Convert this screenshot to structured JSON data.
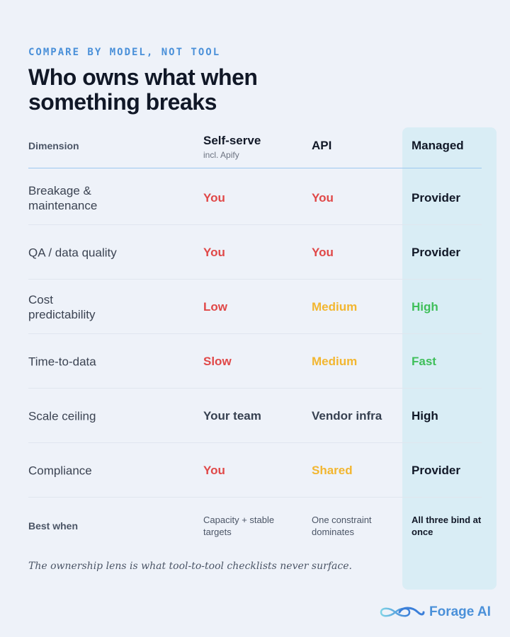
{
  "eyebrow": "COMPARE BY MODEL, NOT TOOL",
  "title": "Who owns what when something breaks",
  "header": {
    "dimension": "Dimension",
    "self_serve": "Self-serve",
    "self_serve_sub": "incl. Apify",
    "api": "API",
    "managed": "Managed"
  },
  "rows": [
    {
      "dimension": "Breakage & maintenance",
      "self_serve": "You",
      "api": "You",
      "managed": "Provider"
    },
    {
      "dimension": "QA / data quality",
      "self_serve": "You",
      "api": "You",
      "managed": "Provider"
    },
    {
      "dimension": "Cost predictability",
      "self_serve": "Low",
      "api": "Medium",
      "managed": "High"
    },
    {
      "dimension": "Time-to-data",
      "self_serve": "Slow",
      "api": "Medium",
      "managed": "Fast"
    },
    {
      "dimension": "Scale ceiling",
      "self_serve": "Your team",
      "api": "Vendor infra",
      "managed": "High"
    },
    {
      "dimension": "Compliance",
      "self_serve": "You",
      "api": "Shared",
      "managed": "Provider"
    }
  ],
  "best_when": {
    "label": "Best when",
    "self_serve": "Capacity + stable targets",
    "api": "One constraint dominates",
    "managed": "All three bind at once"
  },
  "footnote": "The ownership lens is what tool-to-tool checklists never surface.",
  "brand": {
    "name": "Forage AI",
    "icon": "infinity-logo-icon",
    "color": "#4a90d9"
  },
  "colors": {
    "red": "#e04848",
    "orange": "#f2b630",
    "green": "#3fbf5a",
    "managed_bg": "#d9edf5"
  }
}
